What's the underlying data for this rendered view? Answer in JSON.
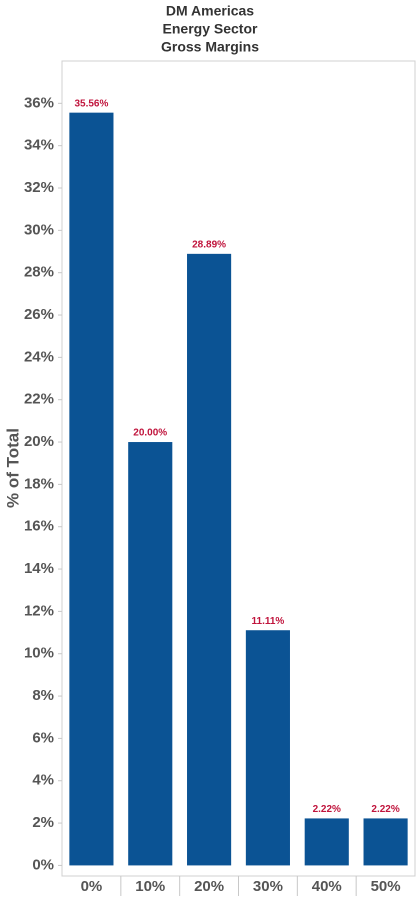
{
  "chart_data": {
    "type": "bar",
    "title": [
      "DM Americas",
      "Energy Sector",
      "Gross Margins"
    ],
    "y_label": "% of Total",
    "categories": [
      "0%",
      "10%",
      "20%",
      "30%",
      "40%",
      "50%"
    ],
    "values": [
      35.56,
      20.0,
      28.89,
      11.11,
      2.22,
      2.22
    ],
    "value_labels": [
      "35.56%",
      "20.00%",
      "28.89%",
      "11.11%",
      "2.22%",
      "2.22%"
    ],
    "color": "#0b5394",
    "label_color": "#c0143c",
    "ylim": [
      -0.5,
      38
    ],
    "yticks": [
      {
        "value": 0,
        "label": "0%"
      },
      {
        "value": 2,
        "label": "2%"
      },
      {
        "value": 4,
        "label": "4%"
      },
      {
        "value": 6,
        "label": "6%"
      },
      {
        "value": 8,
        "label": "8%"
      },
      {
        "value": 10,
        "label": "10%"
      },
      {
        "value": 12,
        "label": "12%"
      },
      {
        "value": 14,
        "label": "14%"
      },
      {
        "value": 16,
        "label": "16%"
      },
      {
        "value": 18,
        "label": "18%"
      },
      {
        "value": 20,
        "label": "20%"
      },
      {
        "value": 22,
        "label": "22%"
      },
      {
        "value": 24,
        "label": "24%"
      },
      {
        "value": 26,
        "label": "26%"
      },
      {
        "value": 28,
        "label": "28%"
      },
      {
        "value": 30,
        "label": "30%"
      },
      {
        "value": 32,
        "label": "32%"
      },
      {
        "value": 34,
        "label": "34%"
      },
      {
        "value": 36,
        "label": "36%"
      }
    ],
    "grid": false
  }
}
